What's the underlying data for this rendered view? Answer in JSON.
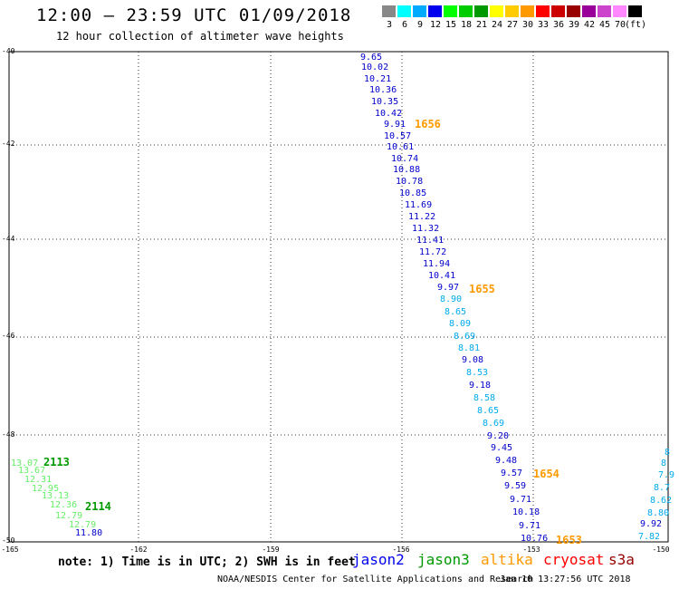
{
  "header": {
    "title": "12:00 – 23:59 UTC 01/09/2018",
    "subtitle": "12 hour collection of altimeter wave heights"
  },
  "colorbar": {
    "labels": [
      "3",
      "6",
      "9",
      "12",
      "15",
      "18",
      "21",
      "24",
      "27",
      "30",
      "33",
      "36",
      "39",
      "42",
      "45",
      "70",
      "(ft)"
    ],
    "colors": [
      "#888888",
      "#00ffff",
      "#00aaff",
      "#0000ee",
      "#00ff00",
      "#00cc00",
      "#009900",
      "#ffff00",
      "#ffcc00",
      "#ff9900",
      "#ff0000",
      "#cc0000",
      "#990000",
      "#990099",
      "#cc44cc",
      "#ff88ff",
      "#000000"
    ]
  },
  "map": {
    "lat_labels": [
      "-40",
      "-42",
      "-44",
      "-46",
      "-48",
      "-50"
    ],
    "lon_labels": [
      "-165",
      "-162",
      "-159",
      "-156",
      "-153",
      "-150"
    ]
  },
  "observations": [
    {
      "t": "9.65",
      "c": "#0000cc"
    },
    {
      "t": "10.02",
      "c": "#0000cc"
    },
    {
      "t": "10.21",
      "c": "#0000cc"
    },
    {
      "t": "10.36",
      "c": "#0000cc"
    },
    {
      "t": "10.35",
      "c": "#0000cc"
    },
    {
      "t": "10.42",
      "c": "#0000cc"
    },
    {
      "t": "9.91",
      "c": "#0000cc"
    },
    {
      "t": "10.57",
      "c": "#0000cc"
    },
    {
      "t": "10.61",
      "c": "#0000cc"
    },
    {
      "t": "10.74",
      "c": "#0000cc"
    },
    {
      "t": "10.88",
      "c": "#0000cc"
    },
    {
      "t": "10.78",
      "c": "#0000cc"
    },
    {
      "t": "10.85",
      "c": "#0000cc"
    },
    {
      "t": "11.69",
      "c": "#0000cc"
    },
    {
      "t": "11.22",
      "c": "#0000cc"
    },
    {
      "t": "11.32",
      "c": "#0000cc"
    },
    {
      "t": "11.41",
      "c": "#0000cc"
    },
    {
      "t": "11.72",
      "c": "#0000cc"
    },
    {
      "t": "11.94",
      "c": "#0000cc"
    },
    {
      "t": "10.41",
      "c": "#0000cc"
    },
    {
      "t": "9.97",
      "c": "#0000cc"
    },
    {
      "t": "8.90",
      "c": "#00aaee"
    },
    {
      "t": "8.65",
      "c": "#00aaee"
    },
    {
      "t": "8.09",
      "c": "#00aaee"
    },
    {
      "t": "8.69",
      "c": "#00aaee"
    },
    {
      "t": "8.81",
      "c": "#00aaee"
    },
    {
      "t": "9.08",
      "c": "#0000cc"
    },
    {
      "t": "8.53",
      "c": "#00aaee"
    },
    {
      "t": "9.18",
      "c": "#0000cc"
    },
    {
      "t": "8.58",
      "c": "#00aaee"
    },
    {
      "t": "8.65",
      "c": "#00aaee"
    },
    {
      "t": "8.69",
      "c": "#00aaee"
    },
    {
      "t": "9.20",
      "c": "#0000cc"
    },
    {
      "t": "9.45",
      "c": "#0000cc"
    },
    {
      "t": "9.48",
      "c": "#0000cc"
    },
    {
      "t": "9.57",
      "c": "#0000cc"
    },
    {
      "t": "9.59",
      "c": "#0000cc"
    },
    {
      "t": "9.71",
      "c": "#0000cc"
    },
    {
      "t": "10.18",
      "c": "#0000cc"
    },
    {
      "t": "9.71",
      "c": "#0000cc"
    },
    {
      "t": "10.76",
      "c": "#0000cc"
    },
    {
      "t": "13.07",
      "c": "#66ee66"
    },
    {
      "t": "13.67",
      "c": "#66ee66"
    },
    {
      "t": "12.31",
      "c": "#66ee66"
    },
    {
      "t": "12.95",
      "c": "#66ee66"
    },
    {
      "t": "13.13",
      "c": "#66ee66"
    },
    {
      "t": "12.36",
      "c": "#66ee66"
    },
    {
      "t": "12.79",
      "c": "#66ee66"
    },
    {
      "t": "12.79",
      "c": "#66ee66"
    },
    {
      "t": "11.80",
      "c": "#0000cc"
    },
    {
      "t": "8",
      "c": "#00aaee"
    },
    {
      "t": "8",
      "c": "#00aaee"
    },
    {
      "t": "7.9",
      "c": "#00aaee"
    },
    {
      "t": "8.7",
      "c": "#00aaee"
    },
    {
      "t": "8.62",
      "c": "#00aaee"
    },
    {
      "t": "8.80",
      "c": "#00aaee"
    },
    {
      "t": "9.92",
      "c": "#0000cc"
    },
    {
      "t": "7.82",
      "c": "#00aaee"
    }
  ],
  "time_labels": [
    {
      "t": "1656",
      "c": "#ff9900"
    },
    {
      "t": "1655",
      "c": "#ff9900"
    },
    {
      "t": "1654",
      "c": "#ff9900"
    },
    {
      "t": "1653",
      "c": "#ff9900"
    },
    {
      "t": "2113",
      "c": "#009900"
    },
    {
      "t": "2114",
      "c": "#009900"
    }
  ],
  "footer": {
    "note": "note: 1) Time is in UTC; 2) SWH is in feet",
    "legend": [
      {
        "t": "jason2",
        "c": "#0000ee"
      },
      {
        "t": "jason3",
        "c": "#009900"
      },
      {
        "t": "altika",
        "c": "#ff9900"
      },
      {
        "t": "cryosat",
        "c": "#ff0000"
      },
      {
        "t": "s3a",
        "c": "#990000"
      }
    ],
    "credit": "NOAA/NESDIS Center for Satellite Applications and Research",
    "stamp": "Jan 10 13:27:56 UTC 2018"
  }
}
